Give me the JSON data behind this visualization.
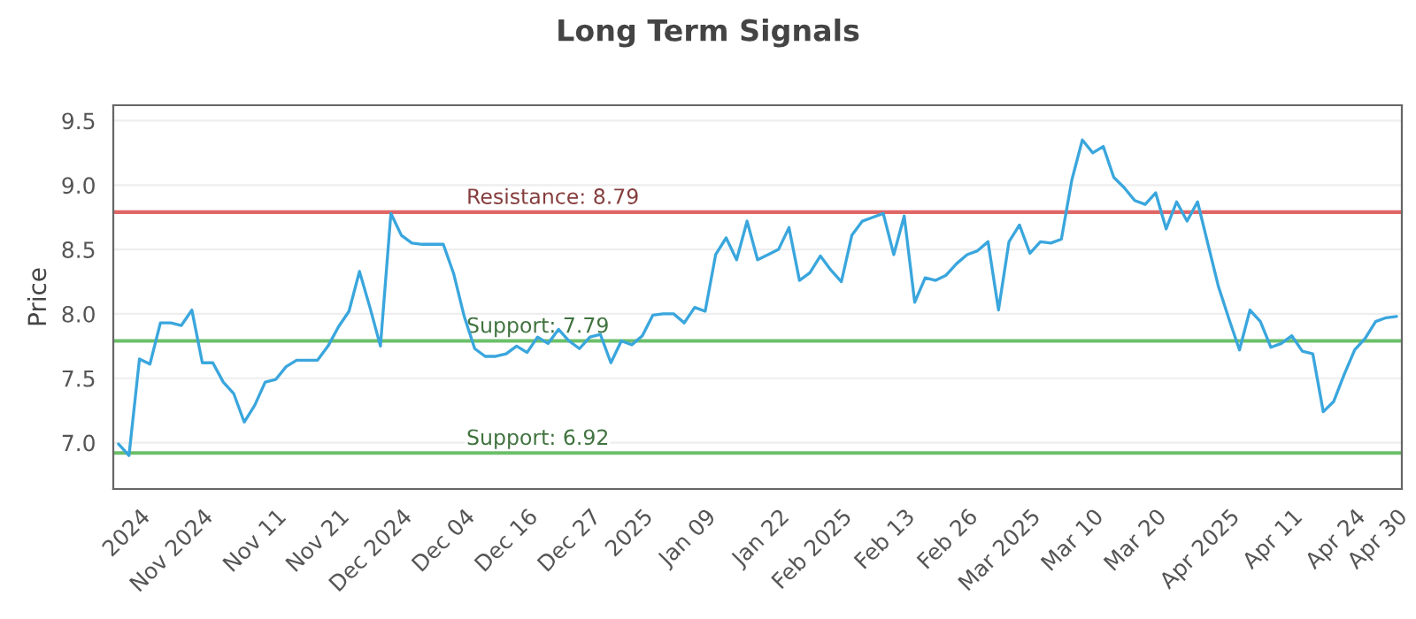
{
  "chart_data": {
    "type": "line",
    "title": "Long Term Signals",
    "ylabel": "Price",
    "categories": [
      null,
      null,
      "2024",
      null,
      null,
      null,
      null,
      null,
      "Nov 2024",
      null,
      null,
      null,
      null,
      null,
      null,
      "Nov 11",
      null,
      null,
      null,
      null,
      null,
      "Nov 21",
      null,
      null,
      null,
      null,
      null,
      "Dec 2024",
      null,
      null,
      null,
      null,
      null,
      "Dec 04",
      null,
      null,
      null,
      null,
      null,
      "Dec 16",
      null,
      null,
      null,
      null,
      null,
      "Dec 27",
      null,
      null,
      null,
      null,
      "2025",
      null,
      null,
      null,
      null,
      null,
      "Jan 09",
      null,
      null,
      null,
      null,
      null,
      null,
      "Jan 22",
      null,
      null,
      null,
      null,
      null,
      "Feb 2025",
      null,
      null,
      null,
      null,
      null,
      "Feb 13",
      null,
      null,
      null,
      null,
      null,
      "Feb 26",
      null,
      null,
      null,
      null,
      null,
      "Mar 2025",
      null,
      null,
      null,
      null,
      null,
      "Mar 10",
      null,
      null,
      null,
      null,
      null,
      "Mar 20",
      null,
      null,
      null,
      null,
      null,
      null,
      "Apr 2025",
      null,
      null,
      null,
      null,
      null,
      "Apr 11",
      null,
      null,
      null,
      null,
      null,
      "Apr 24",
      null,
      null,
      null,
      "Apr 30"
    ],
    "series": [
      {
        "color": "#3aa6dd",
        "values": [
          6.99,
          6.9,
          7.65,
          7.61,
          7.93,
          7.93,
          7.91,
          8.03,
          7.62,
          7.62,
          7.47,
          7.38,
          7.16,
          7.29,
          7.47,
          7.49,
          7.59,
          7.64,
          7.64,
          7.64,
          7.75,
          7.9,
          8.02,
          8.33,
          8.05,
          7.75,
          8.78,
          8.61,
          8.55,
          8.54,
          8.54,
          8.54,
          8.31,
          7.98,
          7.73,
          7.67,
          7.67,
          7.69,
          7.75,
          7.7,
          7.82,
          7.77,
          7.88,
          7.79,
          7.73,
          7.82,
          7.84,
          7.62,
          7.79,
          7.76,
          7.83,
          7.99,
          8.0,
          8.0,
          7.93,
          8.05,
          8.02,
          8.46,
          8.59,
          8.42,
          8.72,
          8.42,
          8.46,
          8.5,
          8.67,
          8.26,
          8.32,
          8.45,
          8.34,
          8.25,
          8.61,
          8.72,
          8.75,
          8.78,
          8.46,
          8.76,
          8.09,
          8.28,
          8.26,
          8.3,
          8.39,
          8.46,
          8.49,
          8.56,
          8.03,
          8.56,
          8.69,
          8.47,
          8.56,
          8.55,
          8.58,
          9.04,
          9.35,
          9.25,
          9.3,
          9.06,
          8.98,
          8.88,
          8.85,
          8.94,
          8.66,
          8.87,
          8.72,
          8.87,
          8.54,
          8.21,
          7.96,
          7.72,
          8.03,
          7.94,
          7.74,
          7.77,
          7.83,
          7.71,
          7.69,
          7.24,
          7.32,
          7.53,
          7.72,
          7.81,
          7.94,
          7.97,
          7.98
        ]
      }
    ],
    "ylim": [
      6.64,
      9.62
    ],
    "yticks": [
      {
        "value": 7,
        "label": "7.0"
      },
      {
        "value": 7.5,
        "label": "7.5"
      },
      {
        "value": 8,
        "label": "8.0"
      },
      {
        "value": 8.5,
        "label": "8.5"
      },
      {
        "value": 9,
        "label": "9.0"
      },
      {
        "value": 9.5,
        "label": "9.5"
      }
    ],
    "grid": "y",
    "marker": "none",
    "line_style": "solid",
    "ref_lines": [
      {
        "axis": "y",
        "value": 8.79,
        "label": "Resistance: 8.79",
        "color": "#e06666"
      },
      {
        "axis": "y",
        "value": 7.79,
        "label": "Support: 7.79",
        "color": "#6abf69"
      },
      {
        "axis": "y",
        "value": 6.92,
        "label": "Support: 6.92",
        "color": "#6abf69"
      }
    ]
  }
}
